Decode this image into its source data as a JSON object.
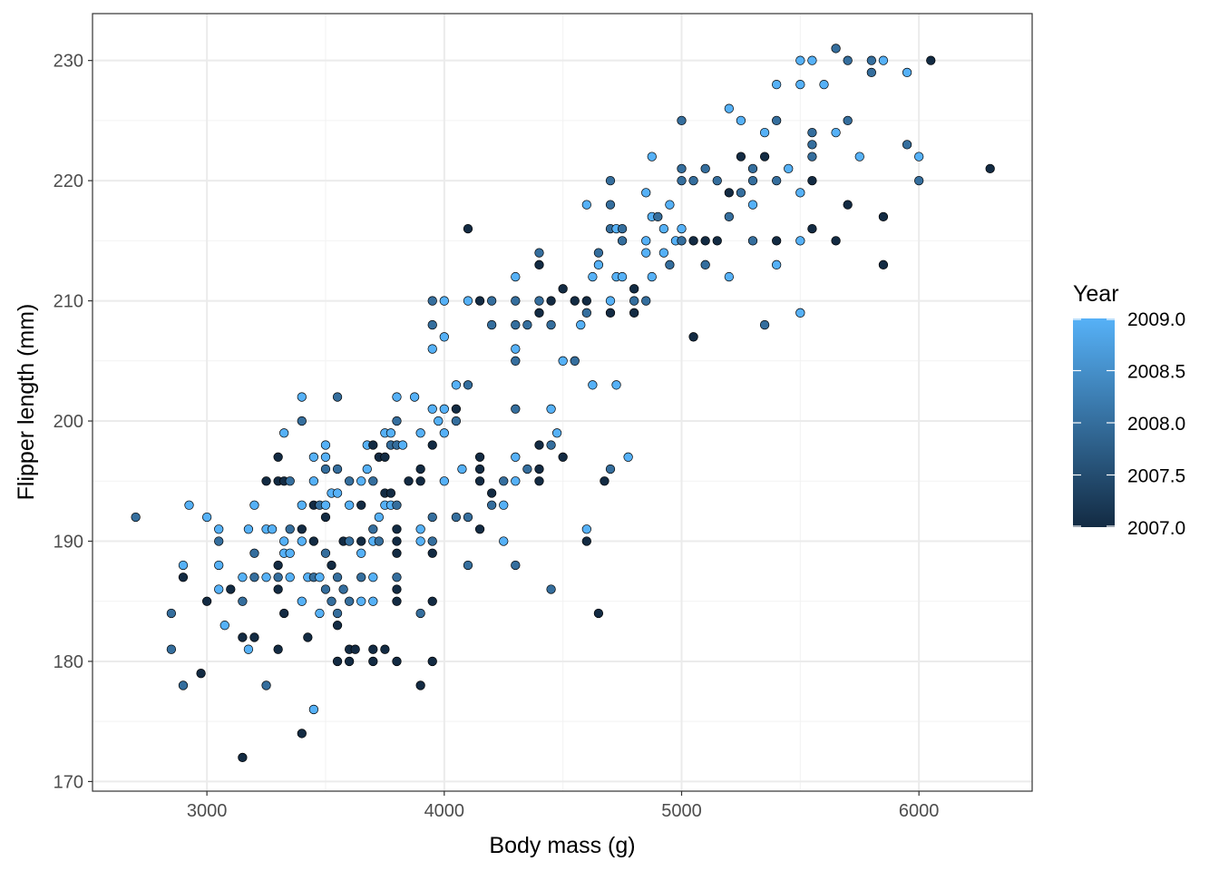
{
  "chart_data": {
    "type": "scatter",
    "title": "",
    "xlabel": "Body mass (g)",
    "ylabel": "Flipper length (mm)",
    "xlim": [
      2518,
      6477
    ],
    "ylim": [
      169.2,
      233.9
    ],
    "x_ticks": [
      3000,
      4000,
      5000,
      6000
    ],
    "y_ticks": [
      170,
      180,
      190,
      200,
      210,
      220,
      230
    ],
    "x_tick_labels": [
      "3000",
      "4000",
      "5000",
      "6000"
    ],
    "y_tick_labels": [
      "170",
      "180",
      "190",
      "200",
      "210",
      "220",
      "230"
    ],
    "grid": true,
    "legend": {
      "title": "Year",
      "placement": "right",
      "type": "colorbar",
      "range": [
        2007,
        2009
      ],
      "ticks": [
        2007.0,
        2007.5,
        2008.0,
        2008.5,
        2009.0
      ],
      "tick_labels": [
        "2007.0",
        "2007.5",
        "2008.0",
        "2008.5",
        "2009.0"
      ],
      "low_color": "#132B43",
      "high_color": "#56B1F7"
    },
    "point_fields": [
      "body_mass_g",
      "flipper_length_mm",
      "year"
    ],
    "points": [
      [
        2700,
        192,
        2008
      ],
      [
        2850,
        184,
        2008
      ],
      [
        2850,
        181,
        2008
      ],
      [
        2900,
        178,
        2008
      ],
      [
        2900,
        187,
        2007
      ],
      [
        2900,
        188,
        2009
      ],
      [
        2925,
        193,
        2009
      ],
      [
        2975,
        179,
        2007
      ],
      [
        3000,
        185,
        2007
      ],
      [
        3000,
        192,
        2009
      ],
      [
        3050,
        191,
        2009
      ],
      [
        3050,
        190,
        2008
      ],
      [
        3050,
        188,
        2009
      ],
      [
        3050,
        186,
        2009
      ],
      [
        3075,
        183,
        2009
      ],
      [
        3100,
        186,
        2007
      ],
      [
        3150,
        187,
        2009
      ],
      [
        3150,
        185,
        2008
      ],
      [
        3150,
        182,
        2007
      ],
      [
        3150,
        172,
        2007
      ],
      [
        3175,
        181,
        2009
      ],
      [
        3175,
        191,
        2009
      ],
      [
        3200,
        193,
        2009
      ],
      [
        3200,
        189,
        2008
      ],
      [
        3200,
        187,
        2008
      ],
      [
        3200,
        182,
        2007
      ],
      [
        3250,
        195,
        2007
      ],
      [
        3250,
        191,
        2009
      ],
      [
        3250,
        187,
        2009
      ],
      [
        3250,
        178,
        2008
      ],
      [
        3275,
        191,
        2009
      ],
      [
        3300,
        197,
        2007
      ],
      [
        3300,
        195,
        2007
      ],
      [
        3300,
        188,
        2007
      ],
      [
        3300,
        187,
        2008
      ],
      [
        3300,
        186,
        2007
      ],
      [
        3300,
        181,
        2007
      ],
      [
        3325,
        199,
        2009
      ],
      [
        3325,
        195,
        2007
      ],
      [
        3325,
        190,
        2009
      ],
      [
        3325,
        189,
        2009
      ],
      [
        3325,
        184,
        2007
      ],
      [
        3350,
        195,
        2008
      ],
      [
        3350,
        191,
        2008
      ],
      [
        3350,
        189,
        2009
      ],
      [
        3350,
        187,
        2009
      ],
      [
        3400,
        202,
        2009
      ],
      [
        3400,
        200,
        2008
      ],
      [
        3400,
        193,
        2009
      ],
      [
        3400,
        191,
        2007
      ],
      [
        3400,
        190,
        2009
      ],
      [
        3400,
        185,
        2009
      ],
      [
        3400,
        174,
        2007
      ],
      [
        3425,
        187,
        2009
      ],
      [
        3425,
        182,
        2007
      ],
      [
        3450,
        197,
        2009
      ],
      [
        3450,
        195,
        2009
      ],
      [
        3450,
        193,
        2007
      ],
      [
        3450,
        190,
        2007
      ],
      [
        3450,
        187,
        2008
      ],
      [
        3450,
        176,
        2009
      ],
      [
        3475,
        193,
        2008
      ],
      [
        3475,
        184,
        2009
      ],
      [
        3475,
        187,
        2009
      ],
      [
        3500,
        198,
        2009
      ],
      [
        3500,
        197,
        2009
      ],
      [
        3500,
        196,
        2008
      ],
      [
        3500,
        193,
        2009
      ],
      [
        3500,
        192,
        2007
      ],
      [
        3500,
        189,
        2008
      ],
      [
        3500,
        186,
        2008
      ],
      [
        3525,
        194,
        2009
      ],
      [
        3525,
        188,
        2007
      ],
      [
        3525,
        185,
        2008
      ],
      [
        3550,
        202,
        2008
      ],
      [
        3550,
        196,
        2008
      ],
      [
        3550,
        194,
        2009
      ],
      [
        3550,
        187,
        2008
      ],
      [
        3550,
        184,
        2008
      ],
      [
        3550,
        183,
        2007
      ],
      [
        3550,
        180,
        2007
      ],
      [
        3575,
        190,
        2007
      ],
      [
        3575,
        186,
        2008
      ],
      [
        3600,
        195,
        2008
      ],
      [
        3600,
        193,
        2009
      ],
      [
        3600,
        190,
        2008
      ],
      [
        3600,
        185,
        2008
      ],
      [
        3600,
        181,
        2007
      ],
      [
        3600,
        180,
        2007
      ],
      [
        3625,
        181,
        2007
      ],
      [
        3650,
        195,
        2009
      ],
      [
        3650,
        193,
        2007
      ],
      [
        3650,
        190,
        2007
      ],
      [
        3650,
        189,
        2009
      ],
      [
        3650,
        187,
        2008
      ],
      [
        3650,
        185,
        2009
      ],
      [
        3675,
        198,
        2009
      ],
      [
        3675,
        196,
        2009
      ],
      [
        3700,
        198,
        2007
      ],
      [
        3700,
        195,
        2008
      ],
      [
        3700,
        191,
        2008
      ],
      [
        3700,
        190,
        2009
      ],
      [
        3700,
        187,
        2009
      ],
      [
        3700,
        185,
        2009
      ],
      [
        3700,
        181,
        2007
      ],
      [
        3700,
        180,
        2007
      ],
      [
        3725,
        197,
        2007
      ],
      [
        3725,
        190,
        2008
      ],
      [
        3725,
        192,
        2009
      ],
      [
        3750,
        199,
        2009
      ],
      [
        3750,
        197,
        2007
      ],
      [
        3750,
        194,
        2007
      ],
      [
        3750,
        193,
        2009
      ],
      [
        3750,
        181,
        2007
      ],
      [
        3775,
        199,
        2009
      ],
      [
        3775,
        198,
        2008
      ],
      [
        3775,
        194,
        2007
      ],
      [
        3775,
        193,
        2009
      ],
      [
        3800,
        202,
        2009
      ],
      [
        3800,
        200,
        2008
      ],
      [
        3800,
        198,
        2008
      ],
      [
        3800,
        193,
        2008
      ],
      [
        3800,
        191,
        2007
      ],
      [
        3800,
        190,
        2007
      ],
      [
        3800,
        189,
        2007
      ],
      [
        3800,
        187,
        2008
      ],
      [
        3800,
        186,
        2007
      ],
      [
        3800,
        185,
        2007
      ],
      [
        3800,
        180,
        2007
      ],
      [
        3825,
        198,
        2009
      ],
      [
        3850,
        195,
        2007
      ],
      [
        3875,
        202,
        2009
      ],
      [
        3900,
        199,
        2009
      ],
      [
        3900,
        196,
        2007
      ],
      [
        3900,
        195,
        2007
      ],
      [
        3900,
        191,
        2009
      ],
      [
        3900,
        190,
        2009
      ],
      [
        3900,
        184,
        2008
      ],
      [
        3900,
        178,
        2007
      ],
      [
        3950,
        210,
        2008
      ],
      [
        3950,
        208,
        2008
      ],
      [
        3950,
        206,
        2009
      ],
      [
        3950,
        201,
        2009
      ],
      [
        3950,
        198,
        2007
      ],
      [
        3950,
        192,
        2008
      ],
      [
        3950,
        190,
        2008
      ],
      [
        3950,
        189,
        2007
      ],
      [
        3950,
        185,
        2007
      ],
      [
        3950,
        180,
        2007
      ],
      [
        3975,
        200,
        2009
      ],
      [
        4000,
        210,
        2009
      ],
      [
        4000,
        207,
        2009
      ],
      [
        4000,
        201,
        2009
      ],
      [
        4000,
        199,
        2009
      ],
      [
        4000,
        195,
        2009
      ],
      [
        4050,
        203,
        2009
      ],
      [
        4050,
        201,
        2007
      ],
      [
        4050,
        200,
        2008
      ],
      [
        4050,
        192,
        2008
      ],
      [
        4075,
        196,
        2009
      ],
      [
        4100,
        216,
        2007
      ],
      [
        4100,
        210,
        2009
      ],
      [
        4100,
        203,
        2008
      ],
      [
        4100,
        192,
        2008
      ],
      [
        4100,
        188,
        2008
      ],
      [
        4150,
        210,
        2007
      ],
      [
        4150,
        197,
        2007
      ],
      [
        4150,
        196,
        2007
      ],
      [
        4150,
        195,
        2007
      ],
      [
        4150,
        191,
        2007
      ],
      [
        4200,
        210,
        2008
      ],
      [
        4200,
        208,
        2008
      ],
      [
        4200,
        194,
        2007
      ],
      [
        4200,
        193,
        2008
      ],
      [
        4250,
        195,
        2008
      ],
      [
        4250,
        193,
        2009
      ],
      [
        4250,
        190,
        2009
      ],
      [
        4300,
        212,
        2009
      ],
      [
        4300,
        210,
        2008
      ],
      [
        4300,
        208,
        2008
      ],
      [
        4300,
        206,
        2009
      ],
      [
        4300,
        205,
        2008
      ],
      [
        4300,
        201,
        2008
      ],
      [
        4300,
        197,
        2009
      ],
      [
        4300,
        195,
        2009
      ],
      [
        4300,
        188,
        2008
      ],
      [
        4350,
        208,
        2008
      ],
      [
        4350,
        196,
        2008
      ],
      [
        4400,
        214,
        2008
      ],
      [
        4400,
        213,
        2007
      ],
      [
        4400,
        210,
        2008
      ],
      [
        4400,
        209,
        2007
      ],
      [
        4400,
        198,
        2007
      ],
      [
        4400,
        196,
        2007
      ],
      [
        4400,
        195,
        2007
      ],
      [
        4450,
        210,
        2007
      ],
      [
        4450,
        208,
        2008
      ],
      [
        4450,
        201,
        2009
      ],
      [
        4450,
        198,
        2008
      ],
      [
        4450,
        186,
        2008
      ],
      [
        4475,
        199,
        2009
      ],
      [
        4500,
        211,
        2007
      ],
      [
        4500,
        205,
        2009
      ],
      [
        4500,
        197,
        2007
      ],
      [
        4550,
        210,
        2007
      ],
      [
        4550,
        205,
        2008
      ],
      [
        4575,
        208,
        2009
      ],
      [
        4600,
        218,
        2009
      ],
      [
        4600,
        210,
        2007
      ],
      [
        4600,
        209,
        2008
      ],
      [
        4600,
        191,
        2009
      ],
      [
        4600,
        190,
        2007
      ],
      [
        4625,
        212,
        2009
      ],
      [
        4625,
        203,
        2009
      ],
      [
        4650,
        214,
        2008
      ],
      [
        4650,
        213,
        2009
      ],
      [
        4650,
        184,
        2007
      ],
      [
        4675,
        195,
        2007
      ],
      [
        4700,
        220,
        2008
      ],
      [
        4700,
        218,
        2008
      ],
      [
        4700,
        216,
        2008
      ],
      [
        4700,
        210,
        2009
      ],
      [
        4700,
        209,
        2007
      ],
      [
        4700,
        196,
        2008
      ],
      [
        4725,
        216,
        2009
      ],
      [
        4725,
        212,
        2009
      ],
      [
        4725,
        203,
        2009
      ],
      [
        4750,
        216,
        2008
      ],
      [
        4750,
        215,
        2008
      ],
      [
        4750,
        212,
        2009
      ],
      [
        4775,
        197,
        2009
      ],
      [
        4800,
        211,
        2007
      ],
      [
        4800,
        210,
        2008
      ],
      [
        4800,
        209,
        2007
      ],
      [
        4850,
        219,
        2009
      ],
      [
        4850,
        215,
        2009
      ],
      [
        4850,
        214,
        2009
      ],
      [
        4850,
        210,
        2008
      ],
      [
        4875,
        222,
        2009
      ],
      [
        4875,
        217,
        2009
      ],
      [
        4875,
        212,
        2009
      ],
      [
        4900,
        217,
        2008
      ],
      [
        4925,
        216,
        2009
      ],
      [
        4925,
        214,
        2009
      ],
      [
        4950,
        218,
        2009
      ],
      [
        4950,
        213,
        2008
      ],
      [
        4975,
        215,
        2009
      ],
      [
        5000,
        225,
        2008
      ],
      [
        5000,
        221,
        2008
      ],
      [
        5000,
        220,
        2008
      ],
      [
        5000,
        216,
        2009
      ],
      [
        5000,
        215,
        2008
      ],
      [
        5050,
        220,
        2008
      ],
      [
        5050,
        215,
        2007
      ],
      [
        5050,
        207,
        2007
      ],
      [
        5100,
        221,
        2008
      ],
      [
        5100,
        215,
        2007
      ],
      [
        5100,
        213,
        2008
      ],
      [
        5150,
        220,
        2008
      ],
      [
        5150,
        215,
        2007
      ],
      [
        5200,
        226,
        2009
      ],
      [
        5200,
        219,
        2007
      ],
      [
        5200,
        217,
        2008
      ],
      [
        5200,
        212,
        2009
      ],
      [
        5250,
        225,
        2009
      ],
      [
        5250,
        222,
        2007
      ],
      [
        5250,
        219,
        2008
      ],
      [
        5300,
        221,
        2008
      ],
      [
        5300,
        220,
        2008
      ],
      [
        5300,
        218,
        2009
      ],
      [
        5300,
        215,
        2008
      ],
      [
        5350,
        224,
        2009
      ],
      [
        5350,
        222,
        2007
      ],
      [
        5350,
        208,
        2008
      ],
      [
        5400,
        228,
        2009
      ],
      [
        5400,
        225,
        2008
      ],
      [
        5400,
        220,
        2008
      ],
      [
        5400,
        215,
        2007
      ],
      [
        5400,
        213,
        2009
      ],
      [
        5450,
        221,
        2009
      ],
      [
        5500,
        230,
        2009
      ],
      [
        5500,
        228,
        2009
      ],
      [
        5500,
        219,
        2009
      ],
      [
        5500,
        215,
        2009
      ],
      [
        5500,
        209,
        2009
      ],
      [
        5550,
        230,
        2009
      ],
      [
        5550,
        224,
        2008
      ],
      [
        5550,
        223,
        2008
      ],
      [
        5550,
        222,
        2008
      ],
      [
        5550,
        220,
        2007
      ],
      [
        5550,
        216,
        2007
      ],
      [
        5600,
        228,
        2009
      ],
      [
        5650,
        231,
        2008
      ],
      [
        5650,
        224,
        2009
      ],
      [
        5650,
        215,
        2007
      ],
      [
        5700,
        230,
        2008
      ],
      [
        5700,
        225,
        2008
      ],
      [
        5700,
        218,
        2007
      ],
      [
        5750,
        222,
        2009
      ],
      [
        5800,
        230,
        2008
      ],
      [
        5800,
        229,
        2008
      ],
      [
        5850,
        230,
        2009
      ],
      [
        5850,
        217,
        2007
      ],
      [
        5850,
        213,
        2007
      ],
      [
        5950,
        229,
        2009
      ],
      [
        5950,
        223,
        2008
      ],
      [
        6000,
        222,
        2009
      ],
      [
        6000,
        220,
        2008
      ],
      [
        6050,
        230,
        2007
      ],
      [
        6300,
        221,
        2007
      ]
    ]
  }
}
